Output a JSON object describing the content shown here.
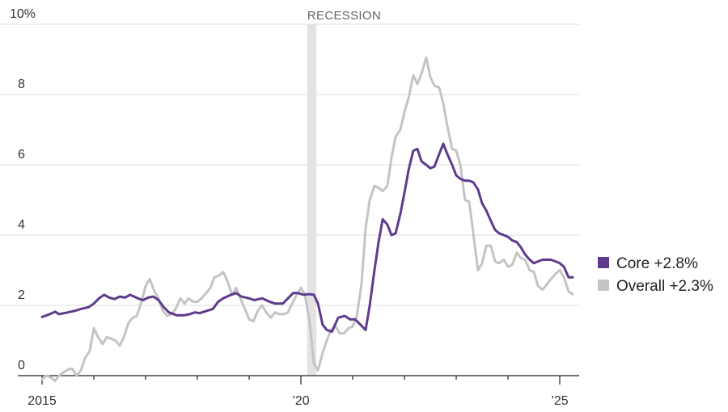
{
  "chart_data": {
    "type": "line",
    "title": "",
    "xlabel": "",
    "ylabel": "",
    "ylim": [
      0,
      10
    ],
    "yticks": [
      0,
      2,
      4,
      6,
      8,
      10
    ],
    "ytick_labels": [
      "0",
      "2",
      "4",
      "6",
      "8",
      "10%"
    ],
    "xlim": [
      2015,
      2025.33
    ],
    "xtick_labels": [
      {
        "x": 2015,
        "label": "2015"
      },
      {
        "x": 2020,
        "label": "’20"
      },
      {
        "x": 2025,
        "label": "’25"
      }
    ],
    "minor_xticks": [
      2016,
      2017,
      2018,
      2019,
      2021,
      2022,
      2023,
      2024
    ],
    "recession": {
      "label": "RECESSION",
      "start": 2020.12,
      "end": 2020.3
    },
    "series": [
      {
        "name": "Core",
        "legend": "Core +2.8%",
        "color": "#5e3b8c",
        "points": [
          [
            2015.0,
            1.67
          ],
          [
            2015.15,
            1.75
          ],
          [
            2015.25,
            1.82
          ],
          [
            2015.33,
            1.75
          ],
          [
            2015.5,
            1.8
          ],
          [
            2015.65,
            1.85
          ],
          [
            2015.75,
            1.9
          ],
          [
            2015.9,
            1.95
          ],
          [
            2016.0,
            2.05
          ],
          [
            2016.1,
            2.2
          ],
          [
            2016.2,
            2.3
          ],
          [
            2016.3,
            2.22
          ],
          [
            2016.4,
            2.18
          ],
          [
            2016.5,
            2.25
          ],
          [
            2016.6,
            2.22
          ],
          [
            2016.7,
            2.3
          ],
          [
            2016.85,
            2.2
          ],
          [
            2016.95,
            2.15
          ],
          [
            2017.05,
            2.22
          ],
          [
            2017.15,
            2.25
          ],
          [
            2017.25,
            2.15
          ],
          [
            2017.35,
            1.95
          ],
          [
            2017.45,
            1.8
          ],
          [
            2017.6,
            1.72
          ],
          [
            2017.75,
            1.72
          ],
          [
            2017.85,
            1.75
          ],
          [
            2017.95,
            1.8
          ],
          [
            2018.05,
            1.78
          ],
          [
            2018.15,
            1.83
          ],
          [
            2018.3,
            1.9
          ],
          [
            2018.4,
            2.1
          ],
          [
            2018.5,
            2.2
          ],
          [
            2018.65,
            2.3
          ],
          [
            2018.75,
            2.35
          ],
          [
            2018.85,
            2.25
          ],
          [
            2019.0,
            2.2
          ],
          [
            2019.1,
            2.15
          ],
          [
            2019.25,
            2.2
          ],
          [
            2019.4,
            2.1
          ],
          [
            2019.5,
            2.05
          ],
          [
            2019.65,
            2.05
          ],
          [
            2019.75,
            2.2
          ],
          [
            2019.85,
            2.35
          ],
          [
            2019.95,
            2.35
          ],
          [
            2020.05,
            2.3
          ],
          [
            2020.15,
            2.32
          ],
          [
            2020.25,
            2.3
          ],
          [
            2020.33,
            2.05
          ],
          [
            2020.42,
            1.45
          ],
          [
            2020.5,
            1.3
          ],
          [
            2020.6,
            1.25
          ],
          [
            2020.72,
            1.65
          ],
          [
            2020.85,
            1.7
          ],
          [
            2020.95,
            1.6
          ],
          [
            2021.05,
            1.6
          ],
          [
            2021.15,
            1.45
          ],
          [
            2021.25,
            1.3
          ],
          [
            2021.33,
            2.0
          ],
          [
            2021.42,
            3.0
          ],
          [
            2021.5,
            3.8
          ],
          [
            2021.58,
            4.45
          ],
          [
            2021.67,
            4.3
          ],
          [
            2021.75,
            4.0
          ],
          [
            2021.83,
            4.05
          ],
          [
            2021.92,
            4.6
          ],
          [
            2022.0,
            5.2
          ],
          [
            2022.08,
            5.85
          ],
          [
            2022.17,
            6.4
          ],
          [
            2022.25,
            6.45
          ],
          [
            2022.33,
            6.1
          ],
          [
            2022.42,
            6.0
          ],
          [
            2022.5,
            5.9
          ],
          [
            2022.58,
            5.95
          ],
          [
            2022.67,
            6.3
          ],
          [
            2022.75,
            6.6
          ],
          [
            2022.83,
            6.3
          ],
          [
            2022.92,
            6.0
          ],
          [
            2023.0,
            5.7
          ],
          [
            2023.08,
            5.6
          ],
          [
            2023.17,
            5.55
          ],
          [
            2023.25,
            5.55
          ],
          [
            2023.33,
            5.5
          ],
          [
            2023.42,
            5.3
          ],
          [
            2023.5,
            4.9
          ],
          [
            2023.58,
            4.7
          ],
          [
            2023.67,
            4.4
          ],
          [
            2023.75,
            4.15
          ],
          [
            2023.83,
            4.05
          ],
          [
            2023.92,
            4.0
          ],
          [
            2024.0,
            3.95
          ],
          [
            2024.08,
            3.85
          ],
          [
            2024.17,
            3.8
          ],
          [
            2024.25,
            3.65
          ],
          [
            2024.33,
            3.45
          ],
          [
            2024.42,
            3.3
          ],
          [
            2024.5,
            3.2
          ],
          [
            2024.58,
            3.25
          ],
          [
            2024.67,
            3.3
          ],
          [
            2024.75,
            3.3
          ],
          [
            2024.83,
            3.3
          ],
          [
            2024.92,
            3.25
          ],
          [
            2025.0,
            3.2
          ],
          [
            2025.08,
            3.1
          ],
          [
            2025.17,
            2.8
          ],
          [
            2025.25,
            2.8
          ]
        ]
      },
      {
        "name": "Overall",
        "legend": "Overall +2.3%",
        "color": "#c4c4c4",
        "points": [
          [
            2015.0,
            -0.1
          ],
          [
            2015.08,
            0.0
          ],
          [
            2015.17,
            -0.05
          ],
          [
            2015.25,
            -0.15
          ],
          [
            2015.33,
            0.0
          ],
          [
            2015.42,
            0.1
          ],
          [
            2015.5,
            0.17
          ],
          [
            2015.58,
            0.2
          ],
          [
            2015.67,
            0.0
          ],
          [
            2015.75,
            0.15
          ],
          [
            2015.83,
            0.5
          ],
          [
            2015.92,
            0.7
          ],
          [
            2016.0,
            1.35
          ],
          [
            2016.08,
            1.1
          ],
          [
            2016.17,
            0.9
          ],
          [
            2016.25,
            1.1
          ],
          [
            2016.33,
            1.05
          ],
          [
            2016.42,
            1.0
          ],
          [
            2016.5,
            0.85
          ],
          [
            2016.58,
            1.1
          ],
          [
            2016.67,
            1.5
          ],
          [
            2016.75,
            1.65
          ],
          [
            2016.83,
            1.7
          ],
          [
            2016.92,
            2.1
          ],
          [
            2017.0,
            2.55
          ],
          [
            2017.08,
            2.75
          ],
          [
            2017.17,
            2.4
          ],
          [
            2017.25,
            2.2
          ],
          [
            2017.33,
            1.85
          ],
          [
            2017.42,
            1.7
          ],
          [
            2017.5,
            1.75
          ],
          [
            2017.58,
            1.9
          ],
          [
            2017.67,
            2.2
          ],
          [
            2017.75,
            2.05
          ],
          [
            2017.83,
            2.2
          ],
          [
            2017.92,
            2.1
          ],
          [
            2018.0,
            2.1
          ],
          [
            2018.08,
            2.2
          ],
          [
            2018.17,
            2.35
          ],
          [
            2018.25,
            2.5
          ],
          [
            2018.33,
            2.8
          ],
          [
            2018.42,
            2.85
          ],
          [
            2018.5,
            2.95
          ],
          [
            2018.58,
            2.7
          ],
          [
            2018.67,
            2.3
          ],
          [
            2018.75,
            2.5
          ],
          [
            2018.83,
            2.2
          ],
          [
            2018.92,
            1.9
          ],
          [
            2019.0,
            1.6
          ],
          [
            2019.08,
            1.55
          ],
          [
            2019.17,
            1.85
          ],
          [
            2019.25,
            2.0
          ],
          [
            2019.33,
            1.8
          ],
          [
            2019.42,
            1.65
          ],
          [
            2019.5,
            1.8
          ],
          [
            2019.58,
            1.75
          ],
          [
            2019.67,
            1.75
          ],
          [
            2019.75,
            1.8
          ],
          [
            2019.83,
            2.05
          ],
          [
            2019.92,
            2.3
          ],
          [
            2020.0,
            2.5
          ],
          [
            2020.08,
            2.3
          ],
          [
            2020.17,
            1.5
          ],
          [
            2020.25,
            0.35
          ],
          [
            2020.33,
            0.15
          ],
          [
            2020.42,
            0.65
          ],
          [
            2020.5,
            1.0
          ],
          [
            2020.58,
            1.3
          ],
          [
            2020.67,
            1.4
          ],
          [
            2020.75,
            1.2
          ],
          [
            2020.83,
            1.2
          ],
          [
            2020.92,
            1.35
          ],
          [
            2021.0,
            1.4
          ],
          [
            2021.08,
            1.7
          ],
          [
            2021.17,
            2.6
          ],
          [
            2021.25,
            4.2
          ],
          [
            2021.33,
            5.0
          ],
          [
            2021.42,
            5.4
          ],
          [
            2021.5,
            5.35
          ],
          [
            2021.58,
            5.25
          ],
          [
            2021.67,
            5.4
          ],
          [
            2021.75,
            6.2
          ],
          [
            2021.83,
            6.8
          ],
          [
            2021.92,
            7.0
          ],
          [
            2022.0,
            7.5
          ],
          [
            2022.08,
            7.9
          ],
          [
            2022.17,
            8.55
          ],
          [
            2022.25,
            8.3
          ],
          [
            2022.33,
            8.6
          ],
          [
            2022.42,
            9.05
          ],
          [
            2022.5,
            8.5
          ],
          [
            2022.58,
            8.25
          ],
          [
            2022.67,
            8.2
          ],
          [
            2022.75,
            7.75
          ],
          [
            2022.83,
            7.1
          ],
          [
            2022.92,
            6.45
          ],
          [
            2023.0,
            6.4
          ],
          [
            2023.08,
            6.0
          ],
          [
            2023.17,
            5.0
          ],
          [
            2023.25,
            4.95
          ],
          [
            2023.33,
            4.05
          ],
          [
            2023.42,
            3.0
          ],
          [
            2023.5,
            3.2
          ],
          [
            2023.58,
            3.7
          ],
          [
            2023.67,
            3.7
          ],
          [
            2023.75,
            3.25
          ],
          [
            2023.83,
            3.2
          ],
          [
            2023.92,
            3.3
          ],
          [
            2024.0,
            3.1
          ],
          [
            2024.08,
            3.15
          ],
          [
            2024.17,
            3.5
          ],
          [
            2024.25,
            3.35
          ],
          [
            2024.33,
            3.3
          ],
          [
            2024.42,
            3.0
          ],
          [
            2024.5,
            2.95
          ],
          [
            2024.58,
            2.55
          ],
          [
            2024.67,
            2.45
          ],
          [
            2024.75,
            2.6
          ],
          [
            2024.83,
            2.75
          ],
          [
            2024.92,
            2.9
          ],
          [
            2025.0,
            3.0
          ],
          [
            2025.08,
            2.8
          ],
          [
            2025.17,
            2.4
          ],
          [
            2025.25,
            2.32
          ]
        ]
      }
    ]
  }
}
